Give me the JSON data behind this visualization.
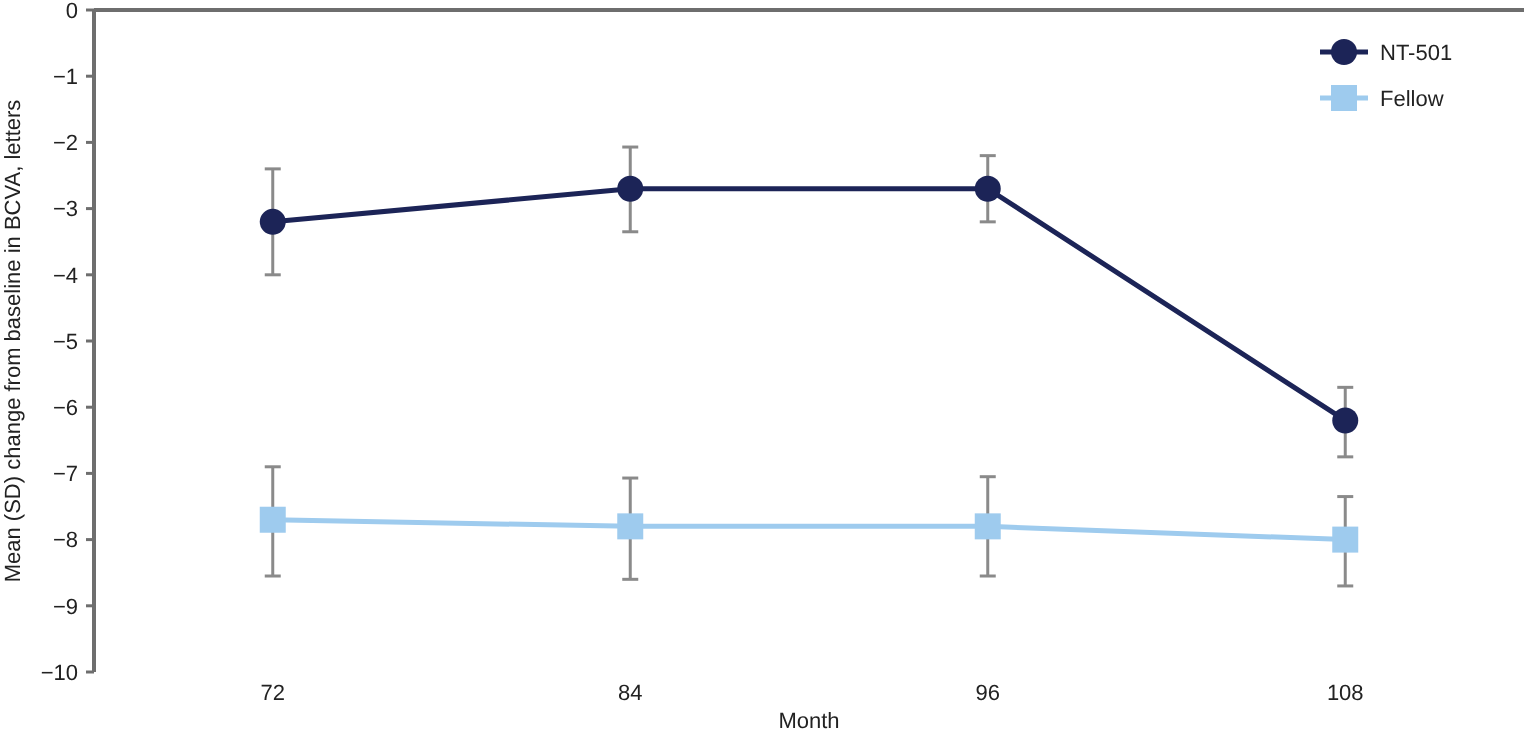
{
  "chart_data": {
    "type": "line",
    "xlabel": "Month",
    "ylabel": "Mean (SD) change from baseline in BCVA, letters",
    "categories": [
      "72",
      "84",
      "96",
      "108"
    ],
    "series": [
      {
        "name": "NT-501",
        "color": "#1c2457",
        "marker": "circle",
        "values": [
          -3.2,
          -2.7,
          -2.7,
          -6.2
        ],
        "errors": [
          [
            -4.0,
            -2.4
          ],
          [
            -3.35,
            -2.07
          ],
          [
            -3.2,
            -2.2
          ],
          [
            -6.75,
            -5.7
          ]
        ]
      },
      {
        "name": "Fellow",
        "color": "#9ecbee",
        "marker": "square",
        "values": [
          -7.7,
          -7.8,
          -7.8,
          -8.0
        ],
        "errors": [
          [
            -8.55,
            -6.9
          ],
          [
            -8.6,
            -7.07
          ],
          [
            -8.55,
            -7.05
          ],
          [
            -8.7,
            -7.35
          ]
        ]
      }
    ],
    "ylim": [
      -10,
      0
    ],
    "yticks": [
      {
        "value": -10,
        "label": "−10"
      },
      {
        "value": -9,
        "label": "−9"
      },
      {
        "value": -8,
        "label": "−8"
      },
      {
        "value": -7,
        "label": "−7"
      },
      {
        "value": -6,
        "label": "−6"
      },
      {
        "value": -5,
        "label": "−5"
      },
      {
        "value": -4,
        "label": "−4"
      },
      {
        "value": -3,
        "label": "−3"
      },
      {
        "value": -2,
        "label": "−2"
      },
      {
        "value": -1,
        "label": "−1"
      },
      0
    ],
    "legend": "top right",
    "grid": false
  }
}
